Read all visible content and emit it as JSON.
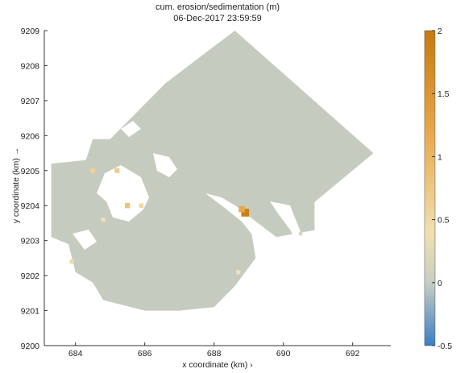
{
  "chart_data": {
    "type": "heatmap",
    "title": "cum. erosion/sedimentation (m)",
    "subtitle": "06-Dec-2017 23:59:59",
    "xlabel": "x coordinate (km)  ›",
    "ylabel": "y coordinate (km) →",
    "xlim": [
      683.1,
      693.1
    ],
    "ylim": [
      9200,
      9209
    ],
    "xticks": [
      684,
      686,
      688,
      690,
      692
    ],
    "yticks": [
      9200,
      9201,
      9202,
      9203,
      9204,
      9205,
      9206,
      9207,
      9208,
      9209
    ],
    "colorbar": {
      "range": [
        -0.5,
        2
      ],
      "ticks": [
        -0.5,
        0,
        0.5,
        1,
        1.5,
        2
      ],
      "tick_labels": [
        "-0.5",
        "0",
        "0.5",
        "1",
        "1.5",
        "2"
      ],
      "colors": [
        "#3b7dc4",
        "#c8cec4",
        "#f0e0b0",
        "#e6a446",
        "#c67a10"
      ]
    },
    "background_value": 0,
    "domain_color": "#c6cbc0",
    "domain_outline": [
      [
        683.3,
        9205.2
      ],
      [
        684.3,
        9205.3
      ],
      [
        684.5,
        9205.9
      ],
      [
        685.0,
        9205.9
      ],
      [
        686.6,
        9207.5
      ],
      [
        688.6,
        9209.0
      ],
      [
        692.6,
        9205.5
      ],
      [
        690.9,
        9204.1
      ],
      [
        690.9,
        9203.3
      ],
      [
        689.8,
        9203.1
      ],
      [
        689.0,
        9203.7
      ],
      [
        689.2,
        9202.5
      ],
      [
        688.6,
        9201.7
      ],
      [
        688.0,
        9201.1
      ],
      [
        687.0,
        9201.0
      ],
      [
        686.0,
        9201.0
      ],
      [
        684.8,
        9201.3
      ],
      [
        684.5,
        9201.8
      ],
      [
        684.0,
        9202.1
      ],
      [
        683.8,
        9202.9
      ],
      [
        683.3,
        9203.1
      ]
    ],
    "hotspots": [
      {
        "x": 688.9,
        "y": 9203.8,
        "value": 1.9
      },
      {
        "x": 688.8,
        "y": 9203.9,
        "value": 1.2
      },
      {
        "x": 685.5,
        "y": 9204.0,
        "value": 0.8
      },
      {
        "x": 685.2,
        "y": 9205.0,
        "value": 0.7
      },
      {
        "x": 684.5,
        "y": 9205.0,
        "value": 0.6
      },
      {
        "x": 684.8,
        "y": 9203.6,
        "value": 0.4
      },
      {
        "x": 688.7,
        "y": 9202.1,
        "value": 0.4
      },
      {
        "x": 683.9,
        "y": 9202.4,
        "value": 0.5
      },
      {
        "x": 685.9,
        "y": 9204.0,
        "value": 0.5
      },
      {
        "x": 690.5,
        "y": 9203.2,
        "value": 0.2
      }
    ]
  }
}
